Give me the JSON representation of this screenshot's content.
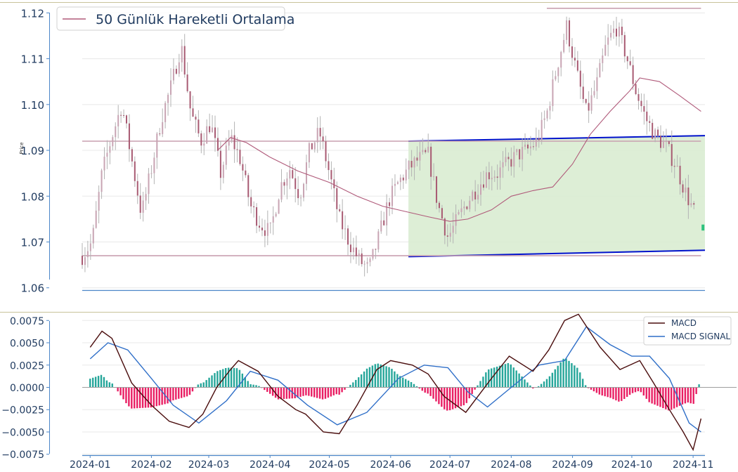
{
  "colors": {
    "candle_wick": "#b3b3b3",
    "candle_up": "#c8a4b3",
    "candle_down": "#a85a72",
    "ma_line": "#b05a7a",
    "level_line": "#c9a0b0",
    "channel_line": "#0011cc",
    "channel_fill": "#d9ecd1",
    "macd_line": "#4a0d0d",
    "signal_line": "#2f6fc8",
    "hist_pos": "#26a69a",
    "hist_neg": "#e91e63",
    "zero_line": "#9e9e9e",
    "grid": "#e8e8e8",
    "axis_spine": "#4b86c8",
    "separator": "#c8c39a",
    "tick_text": "#1f3a5f",
    "last_candle": "#2ec27e"
  },
  "chart_data": [
    {
      "type": "candlestick",
      "ylabel": "Price",
      "ylim": [
        1.0595,
        1.1222
      ],
      "yticks": [
        1.06,
        1.07,
        1.08,
        1.09,
        1.1,
        1.11,
        1.12
      ],
      "ytick_labels": [
        "1.06",
        "1.07",
        "1.08",
        "1.09",
        "1.10",
        "1.11",
        "1.12"
      ],
      "x_start": "2023-12-28",
      "x_end": "2024-11-07",
      "grid": true,
      "legend": {
        "position": "top-left",
        "entries": [
          "50 Günlük Hareketli Ortalama"
        ]
      },
      "series": [
        {
          "name": "50 Günlük Hareketli Ortalama",
          "type": "line",
          "x": [
            "2024-03-06",
            "2024-03-12",
            "2024-03-20",
            "2024-04-01",
            "2024-04-15",
            "2024-05-01",
            "2024-05-15",
            "2024-05-28",
            "2024-06-10",
            "2024-06-20",
            "2024-07-01",
            "2024-07-10",
            "2024-07-22",
            "2024-08-01",
            "2024-08-12",
            "2024-08-22",
            "2024-09-01",
            "2024-09-10",
            "2024-09-20",
            "2024-09-30",
            "2024-10-05",
            "2024-10-15",
            "2024-10-25",
            "2024-11-05"
          ],
          "y": [
            1.0902,
            1.0928,
            1.0917,
            1.0885,
            1.0855,
            1.083,
            1.08,
            1.0778,
            1.0765,
            1.0755,
            1.0745,
            1.075,
            1.077,
            1.08,
            1.0812,
            1.082,
            1.087,
            1.0935,
            1.0985,
            1.103,
            1.1058,
            1.105,
            1.102,
            1.0985
          ]
        }
      ],
      "ohlc_walk": [
        1.067,
        1.07,
        1.085,
        1.093,
        1.1,
        1.088,
        1.076,
        1.086,
        1.097,
        1.104,
        1.113,
        1.098,
        1.092,
        1.096,
        1.085,
        1.093,
        1.088,
        1.078,
        1.074,
        1.072,
        1.082,
        1.086,
        1.08,
        1.09,
        1.094,
        1.085,
        1.075,
        1.07,
        1.066,
        1.064,
        1.071,
        1.079,
        1.083,
        1.086,
        1.088,
        1.089,
        1.078,
        1.071,
        1.075,
        1.079,
        1.082,
        1.085,
        1.085,
        1.087,
        1.089,
        1.09,
        1.092,
        1.098,
        1.108,
        1.117,
        1.107,
        1.098,
        1.104,
        1.113,
        1.117,
        1.111,
        1.103,
        1.097,
        1.093,
        1.091,
        1.087,
        1.081,
        1.076,
        1.078,
        1.084,
        1.088,
        1.09
      ],
      "ohlc_walk_start": "2023-12-28",
      "ohlc_walk_step_days": 5,
      "last_candle": {
        "date": "2024-11-06",
        "open": 1.0725,
        "close": 1.0738
      },
      "reference_levels": [
        {
          "y": 1.067,
          "x_from": "2023-12-28",
          "x_to": "2024-11-05"
        },
        {
          "y": 1.092,
          "x_from": "2023-12-28",
          "x_to": "2024-11-05"
        },
        {
          "y": 1.121,
          "x_from": "2024-08-19",
          "x_to": "2024-11-05"
        }
      ],
      "channel": {
        "x_from": "2024-06-10",
        "x_to": "2024-11-07",
        "upper": [
          1.092,
          1.0932
        ],
        "lower": [
          1.0668,
          1.0682
        ]
      }
    },
    {
      "type": "line",
      "ylim": [
        -0.0076,
        0.0076
      ],
      "yticks": [
        -0.0075,
        -0.005,
        -0.0025,
        0.0,
        0.0025,
        0.005,
        0.0075
      ],
      "ytick_labels": [
        "−0.0075",
        "−0.0050",
        "−0.0025",
        "0.0000",
        "0.0025",
        "0.0050",
        "0.0075"
      ],
      "x_start": "2023-12-28",
      "x_end": "2024-11-07",
      "xtick_labels": [
        "2024-01",
        "2024-02",
        "2024-03",
        "2024-04",
        "2024-05",
        "2024-06",
        "2024-07",
        "2024-08",
        "2024-09",
        "2024-10",
        "2024-11"
      ],
      "xticks": [
        "2024-01-01",
        "2024-02-01",
        "2024-03-01",
        "2024-04-01",
        "2024-05-01",
        "2024-06-01",
        "2024-07-01",
        "2024-08-01",
        "2024-09-01",
        "2024-10-01",
        "2024-11-01"
      ],
      "legend": {
        "position": "top-right",
        "entries": [
          "MACD",
          "MACD SIGNAL"
        ]
      },
      "grid": true,
      "series": [
        {
          "name": "MACD",
          "x": [
            "2024-01-01",
            "2024-01-07",
            "2024-01-12",
            "2024-01-22",
            "2024-02-01",
            "2024-02-10",
            "2024-02-20",
            "2024-02-27",
            "2024-03-05",
            "2024-03-12",
            "2024-03-16",
            "2024-03-26",
            "2024-04-05",
            "2024-04-14",
            "2024-04-19",
            "2024-04-28",
            "2024-05-06",
            "2024-05-15",
            "2024-05-25",
            "2024-06-01",
            "2024-06-12",
            "2024-06-20",
            "2024-06-28",
            "2024-07-09",
            "2024-07-22",
            "2024-07-31",
            "2024-08-12",
            "2024-08-20",
            "2024-08-28",
            "2024-09-04",
            "2024-09-15",
            "2024-09-25",
            "2024-10-05",
            "2024-10-12",
            "2024-10-20",
            "2024-10-27",
            "2024-11-01",
            "2024-11-05"
          ],
          "y": [
            0.0045,
            0.0063,
            0.0055,
            0.0005,
            -0.002,
            -0.0038,
            -0.0045,
            -0.003,
            0.0,
            0.002,
            0.003,
            0.0018,
            -0.001,
            -0.0025,
            -0.003,
            -0.005,
            -0.0052,
            -0.002,
            0.002,
            0.003,
            0.0025,
            0.0015,
            -0.001,
            -0.0028,
            0.001,
            0.0035,
            0.0018,
            0.0042,
            0.0075,
            0.0082,
            0.0045,
            0.002,
            0.003,
            0.0005,
            -0.0025,
            -0.005,
            -0.007,
            -0.0035
          ]
        },
        {
          "name": "MACD SIGNAL",
          "x": [
            "2024-01-01",
            "2024-01-10",
            "2024-01-20",
            "2024-02-01",
            "2024-02-12",
            "2024-02-25",
            "2024-03-10",
            "2024-03-22",
            "2024-04-05",
            "2024-04-20",
            "2024-05-05",
            "2024-05-20",
            "2024-06-05",
            "2024-06-18",
            "2024-06-30",
            "2024-07-10",
            "2024-07-20",
            "2024-08-01",
            "2024-08-15",
            "2024-08-28",
            "2024-09-08",
            "2024-09-20",
            "2024-10-01",
            "2024-10-10",
            "2024-10-20",
            "2024-10-30",
            "2024-11-05"
          ],
          "y": [
            0.0032,
            0.005,
            0.0042,
            0.001,
            -0.002,
            -0.004,
            -0.0015,
            0.0018,
            0.0008,
            -0.002,
            -0.0042,
            -0.0028,
            0.001,
            0.0025,
            0.0022,
            -0.0005,
            -0.0022,
            0.0,
            0.0025,
            0.003,
            0.0068,
            0.0048,
            0.0035,
            0.0035,
            0.001,
            -0.004,
            -0.005
          ]
        }
      ]
    }
  ]
}
